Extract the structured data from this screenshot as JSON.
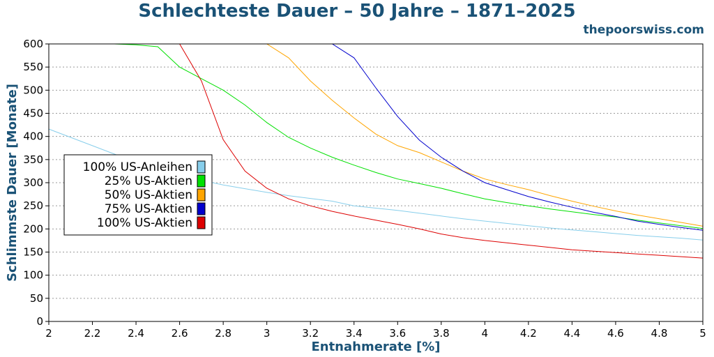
{
  "site": "thepoorswiss.com",
  "chart_data": {
    "type": "line",
    "title": "Schlechteste Dauer – 50 Jahre – 1871–2025",
    "xlabel": "Entnahmerate [%]",
    "ylabel": "Schlimmste Dauer [Monate]",
    "xlim": [
      2,
      5
    ],
    "ylim": [
      0,
      600
    ],
    "xticks": [
      "2",
      "2.2",
      "2.4",
      "2.6",
      "2.8",
      "3",
      "3.2",
      "3.4",
      "3.6",
      "3.8",
      "4",
      "4.2",
      "4.4",
      "4.6",
      "4.8",
      "5"
    ],
    "yticks": [
      "0",
      "50",
      "100",
      "150",
      "200",
      "250",
      "300",
      "350",
      "400",
      "450",
      "500",
      "550",
      "600"
    ],
    "grid": "horizontal dotted",
    "legend_position": "left-middle",
    "series": [
      {
        "name": "100% US-Anleihen",
        "color": "#87ceeb",
        "x": [
          2,
          2.1,
          2.2,
          2.3,
          2.4,
          2.5,
          2.6,
          2.7,
          2.8,
          2.9,
          3,
          3.1,
          3.2,
          3.3,
          3.4,
          3.5,
          3.6,
          3.7,
          3.8,
          3.9,
          4,
          4.1,
          4.2,
          4.3,
          4.4,
          4.5,
          4.6,
          4.7,
          4.8,
          4.9,
          5
        ],
        "y": [
          416,
          398,
          380,
          362,
          345,
          330,
          316,
          305,
          295,
          287,
          279,
          272,
          266,
          260,
          250,
          245,
          240,
          234,
          228,
          222,
          217,
          212,
          207,
          202,
          198,
          194,
          190,
          186,
          183,
          180,
          176
        ]
      },
      {
        "name": "25% US-Aktien",
        "color": "#00e000",
        "x": [
          2,
          2.1,
          2.2,
          2.3,
          2.4,
          2.5,
          2.6,
          2.7,
          2.8,
          2.9,
          3,
          3.1,
          3.2,
          3.3,
          3.4,
          3.5,
          3.6,
          3.7,
          3.8,
          3.9,
          4,
          4.1,
          4.2,
          4.3,
          4.4,
          4.5,
          4.6,
          4.7,
          4.8,
          4.9,
          5
        ],
        "y": [
          600,
          600,
          600,
          600,
          598,
          594,
          550,
          525,
          500,
          468,
          430,
          398,
          375,
          355,
          338,
          322,
          308,
          298,
          288,
          276,
          265,
          257,
          250,
          243,
          237,
          231,
          226,
          219,
          213,
          207,
          201
        ]
      },
      {
        "name": "50% US-Aktien",
        "color": "#ffa500",
        "x": [
          2,
          2.2,
          2.4,
          2.6,
          2.8,
          3,
          3.1,
          3.2,
          3.3,
          3.4,
          3.5,
          3.6,
          3.7,
          3.8,
          3.9,
          4,
          4.1,
          4.2,
          4.3,
          4.4,
          4.5,
          4.6,
          4.7,
          4.8,
          4.9,
          5
        ],
        "y": [
          600,
          600,
          600,
          600,
          600,
          600,
          570,
          520,
          478,
          440,
          405,
          380,
          365,
          345,
          325,
          308,
          296,
          285,
          272,
          260,
          249,
          239,
          230,
          222,
          214,
          206
        ]
      },
      {
        "name": "75% US-Aktien",
        "color": "#0000cd",
        "x": [
          2,
          2.4,
          2.8,
          3,
          3.2,
          3.3,
          3.4,
          3.5,
          3.6,
          3.7,
          3.8,
          3.9,
          4,
          4.1,
          4.2,
          4.3,
          4.4,
          4.5,
          4.6,
          4.7,
          4.8,
          4.9,
          5
        ],
        "y": [
          600,
          600,
          600,
          600,
          600,
          600,
          570,
          505,
          443,
          392,
          355,
          325,
          300,
          285,
          270,
          258,
          247,
          236,
          227,
          217,
          210,
          203,
          197
        ]
      },
      {
        "name": "100% US-Aktien",
        "color": "#dd0000",
        "x": [
          2,
          2.2,
          2.4,
          2.6,
          2.7,
          2.8,
          2.9,
          3,
          3.1,
          3.2,
          3.3,
          3.4,
          3.5,
          3.6,
          3.7,
          3.8,
          3.9,
          4,
          4.1,
          4.2,
          4.3,
          4.4,
          4.5,
          4.6,
          4.7,
          4.8,
          4.9,
          5
        ],
        "y": [
          600,
          600,
          600,
          600,
          520,
          393,
          325,
          288,
          265,
          250,
          238,
          228,
          219,
          210,
          200,
          189,
          181,
          175,
          170,
          165,
          160,
          155,
          152,
          149,
          146,
          143,
          140,
          137
        ]
      }
    ]
  }
}
